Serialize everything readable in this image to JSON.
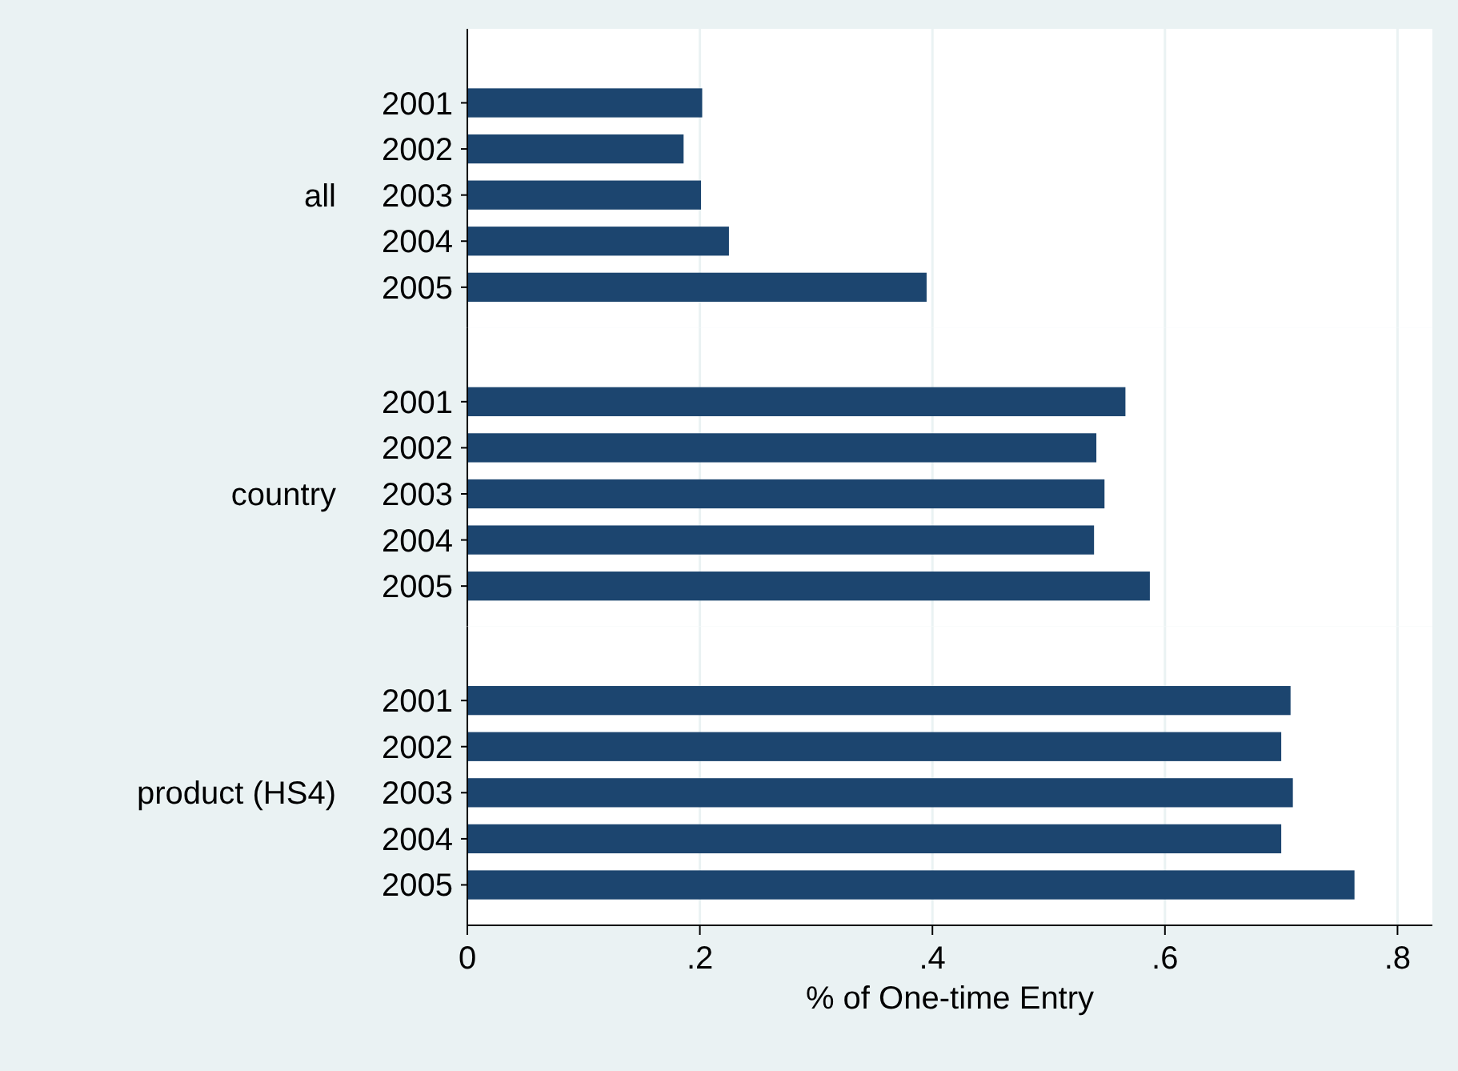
{
  "chart_data": [
    {
      "type": "bar",
      "orientation": "horizontal",
      "ylabel": "all",
      "categories": [
        "2001",
        "2002",
        "2003",
        "2004",
        "2005"
      ],
      "values": [
        0.202,
        0.186,
        0.201,
        0.225,
        0.395
      ],
      "color": "#1c456f",
      "xlim": [
        0,
        0.83
      ],
      "xticks": [
        0,
        0.2,
        0.4,
        0.6,
        0.8
      ],
      "grid": "x",
      "tick_labels": "y"
    },
    {
      "type": "bar",
      "orientation": "horizontal",
      "ylabel": "country",
      "categories": [
        "2001",
        "2002",
        "2003",
        "2004",
        "2005"
      ],
      "values": [
        0.566,
        0.541,
        0.548,
        0.539,
        0.587
      ],
      "color": "#1c456f",
      "xlim": [
        0,
        0.83
      ],
      "xticks": [
        0,
        0.2,
        0.4,
        0.6,
        0.8
      ],
      "grid": "x",
      "tick_labels": "y"
    },
    {
      "type": "bar",
      "orientation": "horizontal",
      "ylabel": "product (HS4)",
      "xlabel": "% of One-time Entry",
      "categories": [
        "2001",
        "2002",
        "2003",
        "2004",
        "2005"
      ],
      "values": [
        0.708,
        0.7,
        0.71,
        0.7,
        0.763
      ],
      "color": "#1c456f",
      "xlim": [
        0,
        0.83
      ],
      "xticks": [
        0,
        {
          "value": 0.2,
          "label": ".2"
        },
        {
          "value": 0.4,
          "label": ".4"
        },
        {
          "value": 0.6,
          "label": ".6"
        },
        {
          "value": 0.8,
          "label": ".8"
        }
      ],
      "grid": "x"
    }
  ]
}
